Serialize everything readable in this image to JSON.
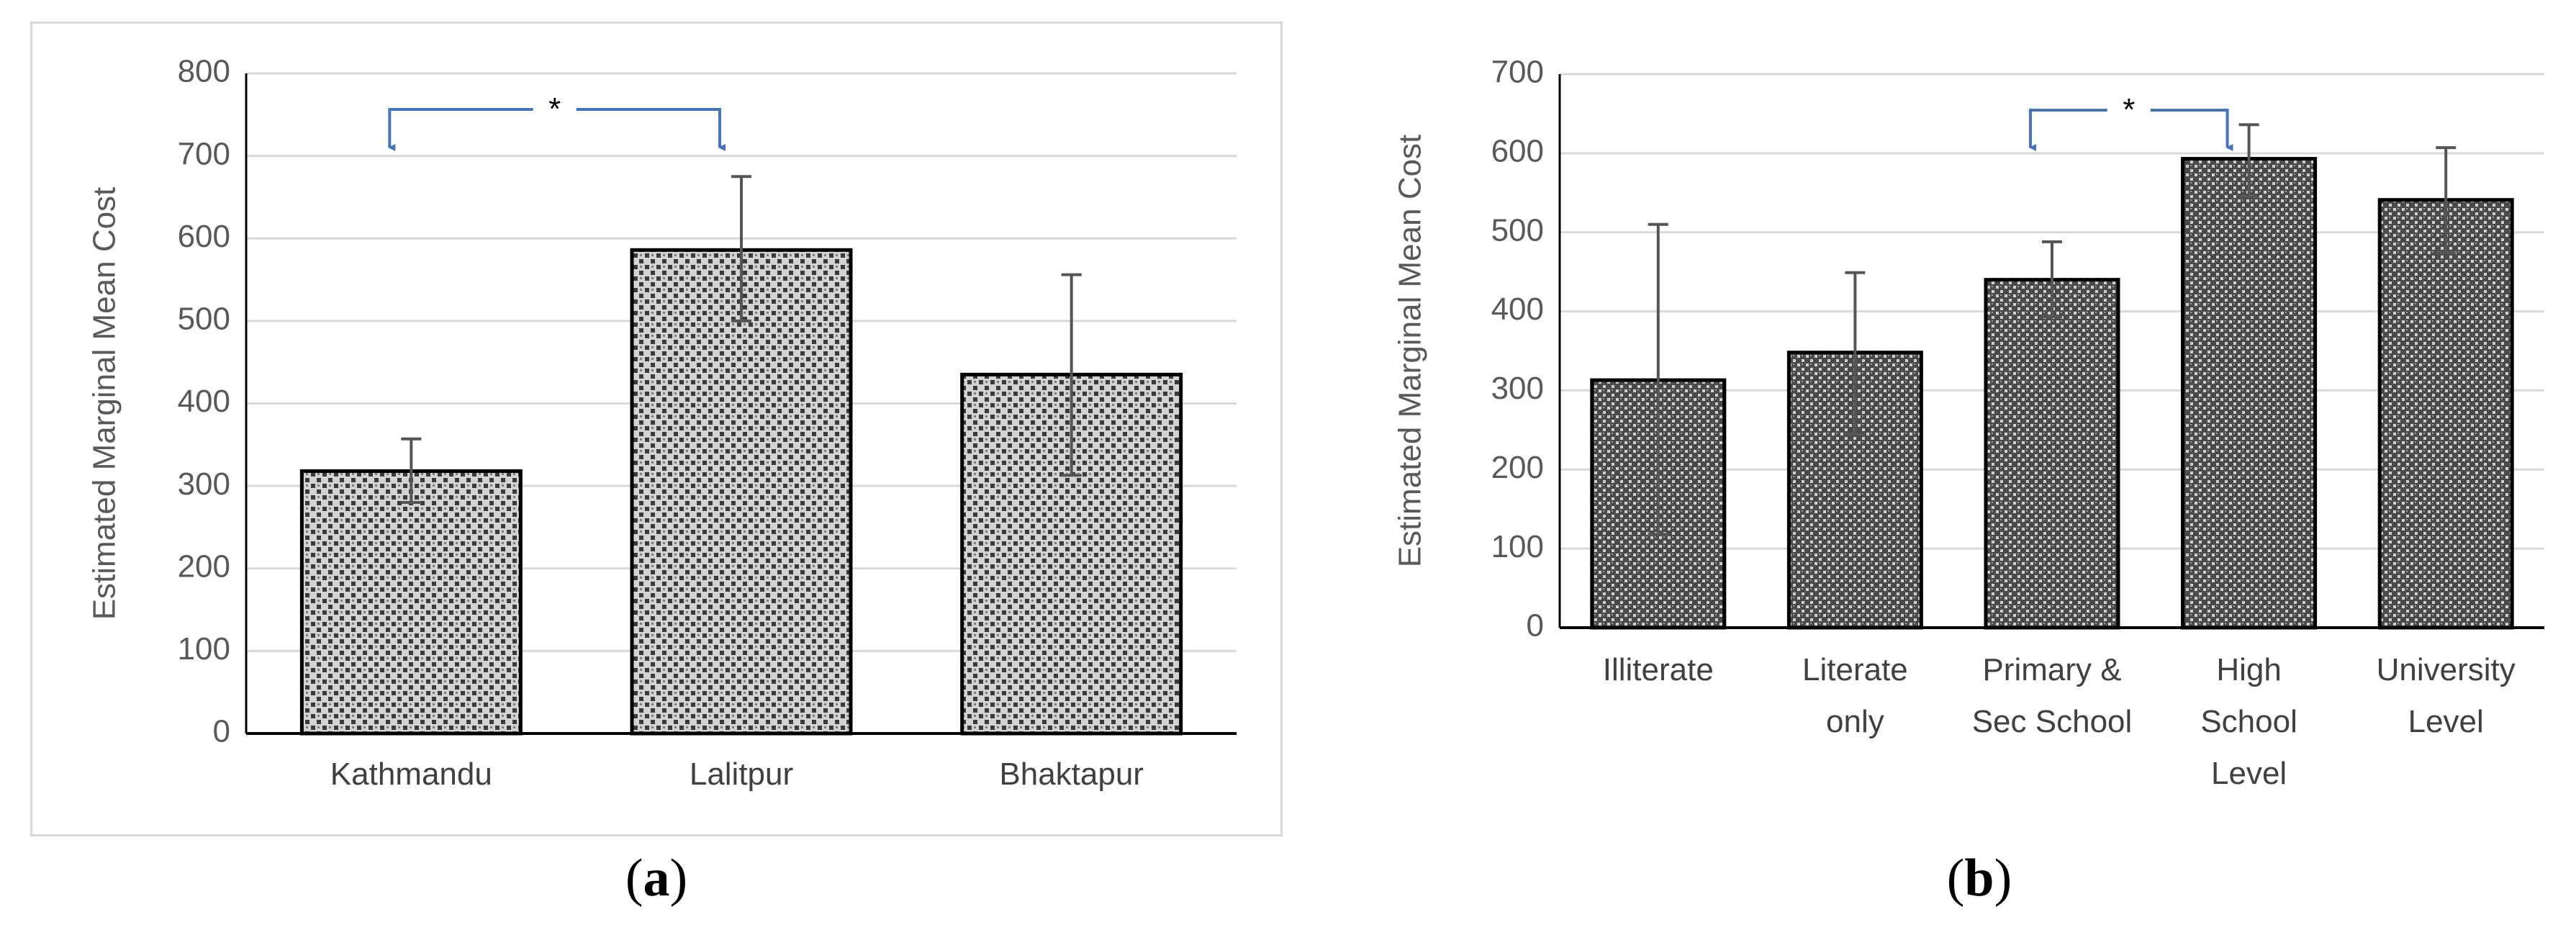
{
  "captions": {
    "a_letter": "a",
    "b_letter": "b"
  },
  "chart_data": [
    {
      "type": "bar",
      "panel": "a",
      "categories": [
        "Kathmandu",
        "Lalitpur",
        "Bhaktapur"
      ],
      "values": [
        318,
        586,
        435
      ],
      "error_bars": [
        [
          280,
          357
        ],
        [
          500,
          675
        ],
        [
          313,
          556
        ]
      ],
      "ylabel": "Estimated Marginal Mean Cost",
      "ylim": [
        0,
        800
      ],
      "yticks": [
        0,
        100,
        200,
        300,
        400,
        500,
        600,
        700,
        800
      ],
      "grid": true,
      "annotation": {
        "text": "*",
        "from": "Kathmandu",
        "to": "Lalitpur"
      },
      "colors": {
        "bar_fill": "#d3d3d3",
        "bar_pattern": "#3a3a3a",
        "error_bar": "#555555",
        "annotation": "#4472c4",
        "grid": "#d9d9d9"
      }
    },
    {
      "type": "bar",
      "panel": "b",
      "categories": [
        "Illiterate",
        "Literate only",
        "Primary & Sec School",
        "High School Level",
        "University Level"
      ],
      "category_lines": [
        [
          "Illiterate"
        ],
        [
          "Literate",
          "only"
        ],
        [
          "Primary &",
          "Sec School"
        ],
        [
          "High",
          "School",
          "Level"
        ],
        [
          "University",
          "Level"
        ]
      ],
      "values": [
        313,
        348,
        440,
        593,
        541
      ],
      "error_bars": [
        [
          118,
          510
        ],
        [
          245,
          449
        ],
        [
          393,
          488
        ],
        [
          545,
          636
        ],
        [
          474,
          607
        ]
      ],
      "ylabel": "Estimated Marginal Mean Cost",
      "ylim": [
        0,
        700
      ],
      "yticks": [
        0,
        100,
        200,
        300,
        400,
        500,
        600,
        700
      ],
      "grid": true,
      "annotation": {
        "text": "*",
        "from": "Primary & Sec School",
        "to": "High School Level"
      },
      "colors": {
        "bar_fill": "#5a5a5a",
        "bar_pattern": "#d0d0d0",
        "error_bar": "#555555",
        "annotation": "#4472c4",
        "grid": "#d9d9d9"
      }
    }
  ]
}
